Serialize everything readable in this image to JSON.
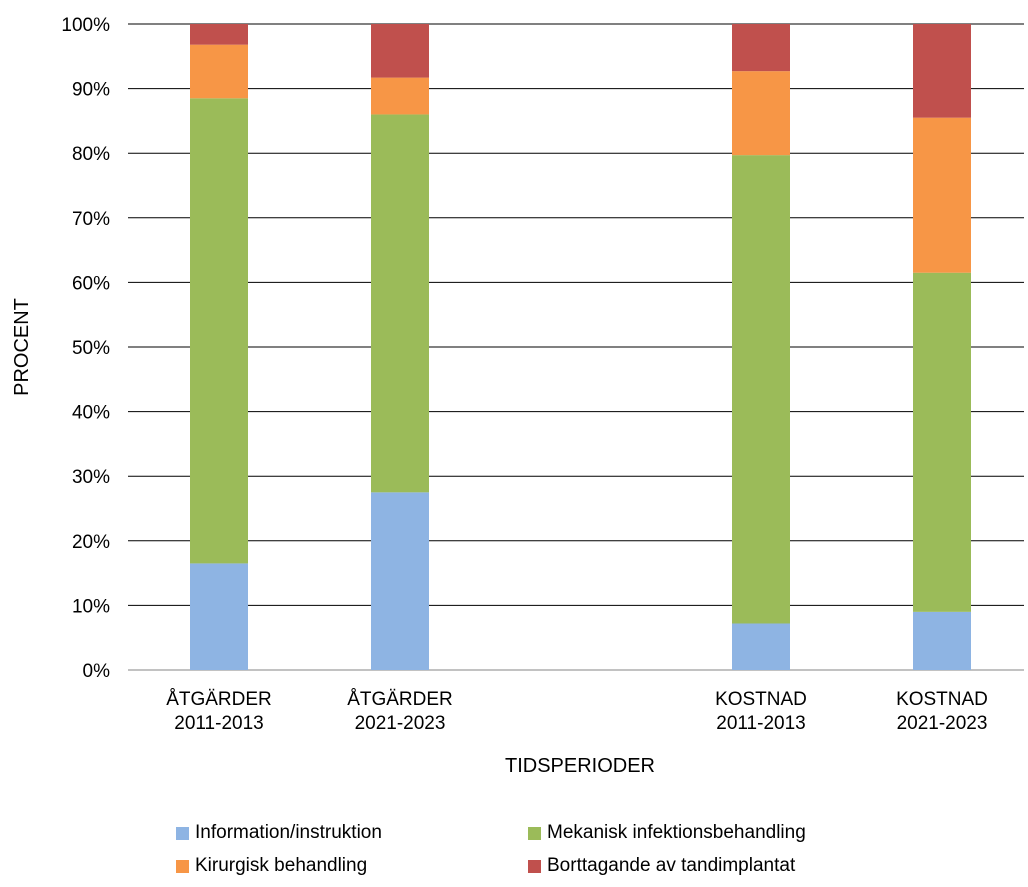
{
  "chart_data": {
    "type": "bar",
    "stacked": true,
    "normalized": true,
    "categories": [
      [
        "ÅTGÄRDER",
        "2011-2013"
      ],
      [
        "ÅTGÄRDER",
        "2021-2023"
      ],
      [
        "KOSTNAD",
        "2011-2013"
      ],
      [
        "KOSTNAD",
        "2021-2023"
      ]
    ],
    "series": [
      {
        "name": "Information/instruktion",
        "color": "#8eb4e3",
        "values": [
          16.5,
          27.5,
          7.2,
          9.0
        ]
      },
      {
        "name": "Mekanisk infektionsbehandling",
        "color": "#9bbb59",
        "values": [
          72.0,
          58.5,
          72.5,
          52.5
        ]
      },
      {
        "name": "Kirurgisk behandling",
        "color": "#f79646",
        "values": [
          8.3,
          5.7,
          13.0,
          24.0
        ]
      },
      {
        "name": "Borttagande av tandimplantat",
        "color": "#c0504d",
        "values": [
          3.2,
          8.3,
          7.3,
          14.5
        ]
      }
    ],
    "xlabel": "TIDSPERIODER",
    "ylabel": "PROCENT",
    "ylim": [
      0,
      100
    ],
    "yticks": [
      "0%",
      "10%",
      "20%",
      "30%",
      "40%",
      "50%",
      "60%",
      "70%",
      "80%",
      "90%",
      "100%"
    ],
    "grid": true,
    "legend_position": "bottom"
  }
}
